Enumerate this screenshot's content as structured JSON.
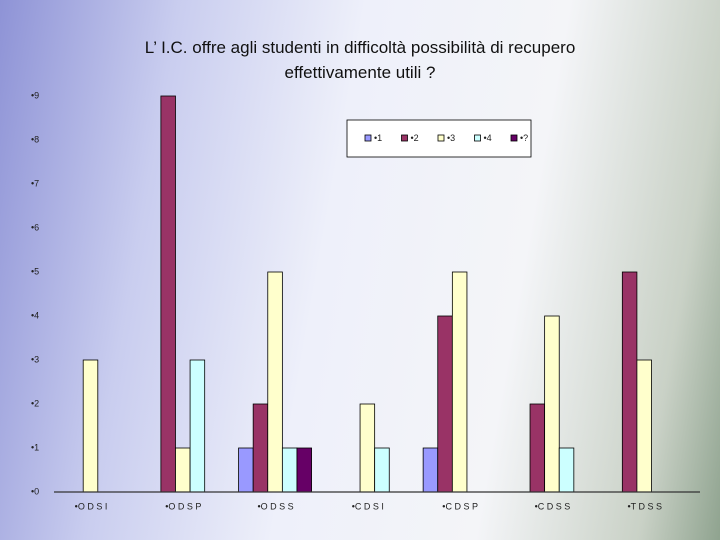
{
  "chart_data": {
    "type": "bar",
    "title": "L’ I.C. offre agli studenti in difficoltà possibilità di recupero effettivamente utili ?",
    "categories": [
      "•O D S I",
      "•O D S P",
      "•O D S S",
      "•C D S I",
      "•C D S P",
      "•C D S S",
      "•T D S S"
    ],
    "series": [
      {
        "name": "•1",
        "color": "#9999ff",
        "values": [
          0,
          0,
          1,
          0,
          1,
          0,
          0
        ]
      },
      {
        "name": "•2",
        "color": "#993366",
        "values": [
          0,
          9,
          2,
          0,
          4,
          2,
          5
        ]
      },
      {
        "name": "•3",
        "color": "#ffffcc",
        "values": [
          3,
          1,
          5,
          2,
          5,
          4,
          3
        ]
      },
      {
        "name": "•4",
        "color": "#ccffff",
        "values": [
          0,
          3,
          1,
          1,
          0,
          1,
          0
        ]
      },
      {
        "name": "•?",
        "color": "#660066",
        "values": [
          0,
          0,
          1,
          0,
          0,
          0,
          0
        ]
      }
    ],
    "ylim": [
      0,
      9
    ],
    "yticks": [
      {
        "value": 0,
        "label": "•0"
      },
      {
        "value": 1,
        "label": "•1"
      },
      {
        "value": 2,
        "label": "•2"
      },
      {
        "value": 3,
        "label": "•3"
      },
      {
        "value": 4,
        "label": "•4"
      },
      {
        "value": 5,
        "label": "•5"
      },
      {
        "value": 6,
        "label": "•6"
      },
      {
        "value": 7,
        "label": "•7"
      },
      {
        "value": 8,
        "label": "•8"
      },
      {
        "value": 9,
        "label": "•9"
      }
    ],
    "grid": false,
    "legend": "upper right"
  }
}
